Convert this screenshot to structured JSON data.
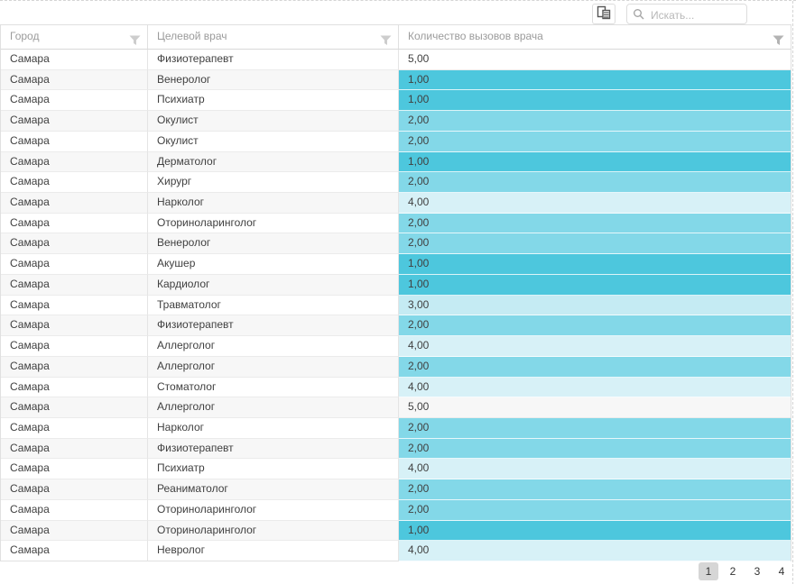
{
  "toolbar": {
    "search_placeholder": "Искать..."
  },
  "grid": {
    "columns": [
      {
        "label": "Город"
      },
      {
        "label": "Целевой врач"
      },
      {
        "label": "Количество вызовов врача"
      }
    ],
    "rows": [
      {
        "city": "Самара",
        "doctor": "Физиотерапевт",
        "value": "5,00"
      },
      {
        "city": "Самара",
        "doctor": "Венеролог",
        "value": "1,00"
      },
      {
        "city": "Самара",
        "doctor": "Психиатр",
        "value": "1,00"
      },
      {
        "city": "Самара",
        "doctor": "Окулист",
        "value": "2,00"
      },
      {
        "city": "Самара",
        "doctor": "Окулист",
        "value": "2,00"
      },
      {
        "city": "Самара",
        "doctor": "Дерматолог",
        "value": "1,00"
      },
      {
        "city": "Самара",
        "doctor": "Хирург",
        "value": "2,00"
      },
      {
        "city": "Самара",
        "doctor": "Нарколог",
        "value": "4,00"
      },
      {
        "city": "Самара",
        "doctor": "Оториноларинголог",
        "value": "2,00"
      },
      {
        "city": "Самара",
        "doctor": "Венеролог",
        "value": "2,00"
      },
      {
        "city": "Самара",
        "doctor": "Акушер",
        "value": "1,00"
      },
      {
        "city": "Самара",
        "doctor": "Кардиолог",
        "value": "1,00"
      },
      {
        "city": "Самара",
        "doctor": "Травматолог",
        "value": "3,00"
      },
      {
        "city": "Самара",
        "doctor": "Физиотерапевт",
        "value": "2,00"
      },
      {
        "city": "Самара",
        "doctor": "Аллерголог",
        "value": "4,00"
      },
      {
        "city": "Самара",
        "doctor": "Аллерголог",
        "value": "2,00"
      },
      {
        "city": "Самара",
        "doctor": "Стоматолог",
        "value": "4,00"
      },
      {
        "city": "Самара",
        "doctor": "Аллерголог",
        "value": "5,00"
      },
      {
        "city": "Самара",
        "doctor": "Нарколог",
        "value": "2,00"
      },
      {
        "city": "Самара",
        "doctor": "Физиотерапевт",
        "value": "2,00"
      },
      {
        "city": "Самара",
        "doctor": "Психиатр",
        "value": "4,00"
      },
      {
        "city": "Самара",
        "doctor": "Реаниматолог",
        "value": "2,00"
      },
      {
        "city": "Самара",
        "doctor": "Оториноларинголог",
        "value": "2,00"
      },
      {
        "city": "Самара",
        "doctor": "Оториноларинголог",
        "value": "1,00"
      },
      {
        "city": "Самара",
        "doctor": "Невролог",
        "value": "4,00"
      }
    ],
    "value_colors": {
      "1": "#4dc7dd",
      "2": "#83d8e8",
      "3": "#c5ebf3",
      "4": "#d7f1f7",
      "5": "#ffffff"
    }
  },
  "pager": {
    "pages": [
      "1",
      "2",
      "3",
      "4"
    ],
    "active": "1"
  }
}
